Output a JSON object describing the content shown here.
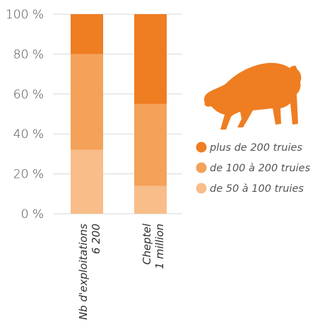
{
  "chart_data": {
    "type": "bar",
    "stacked": true,
    "categories": [
      [
        "Nb d'exploitations",
        "6 200"
      ],
      [
        "Cheptel",
        "1 million"
      ]
    ],
    "series": [
      {
        "name": "de 50  à  100 truies",
        "values": [
          32,
          14
        ],
        "color": "#f8bd88"
      },
      {
        "name": "de 100 à 200 truies",
        "values": [
          48,
          41
        ],
        "color": "#f4a25a"
      },
      {
        "name": "plus de 200 truies",
        "values": [
          20,
          45
        ],
        "color": "#ef7d22"
      }
    ],
    "yticks": [
      "0 %",
      "20 %",
      "40 %",
      "60 %",
      "80 %",
      "100 %"
    ],
    "ylim": [
      0,
      100
    ],
    "legend_order": [
      2,
      1,
      0
    ],
    "legend_position": "right",
    "pig_icon": "pig-silhouette",
    "pig_color": "#ef7d22"
  }
}
